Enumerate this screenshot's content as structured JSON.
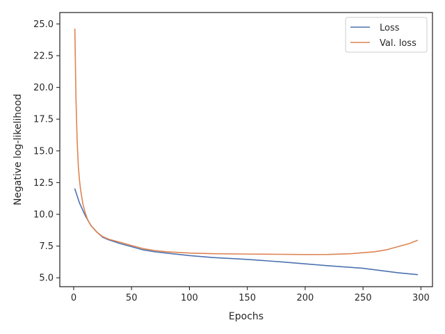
{
  "chart_data": {
    "type": "line",
    "title": "",
    "xlabel": "Epochs",
    "ylabel": "Negative log-likelihood",
    "xlim": [
      -12,
      310
    ],
    "ylim": [
      4.3,
      25.9
    ],
    "xticks": [
      0,
      50,
      100,
      150,
      200,
      250,
      300
    ],
    "xtick_labels": [
      "0",
      "50",
      "100",
      "150",
      "200",
      "250",
      "300"
    ],
    "yticks": [
      5.0,
      7.5,
      10.0,
      12.5,
      15.0,
      17.5,
      20.0,
      22.5,
      25.0
    ],
    "ytick_labels": [
      "5.0",
      "7.5",
      "10.0",
      "12.5",
      "15.0",
      "17.5",
      "20.0",
      "22.5",
      "25.0"
    ],
    "grid": false,
    "legend_position": "top-right",
    "series": [
      {
        "name": "Loss",
        "color": "#4c72b0",
        "x": [
          1,
          5,
          10,
          15,
          20,
          25,
          30,
          40,
          50,
          60,
          70,
          80,
          100,
          120,
          150,
          180,
          200,
          220,
          250,
          280,
          297
        ],
        "y": [
          12.0,
          10.9,
          9.9,
          9.1,
          8.6,
          8.2,
          8.0,
          7.7,
          7.45,
          7.2,
          7.05,
          6.95,
          6.75,
          6.6,
          6.45,
          6.25,
          6.1,
          5.95,
          5.75,
          5.4,
          5.25
        ]
      },
      {
        "name": "Val. loss",
        "color": "#dd8452",
        "x": [
          1,
          2,
          3,
          4,
          5,
          6,
          8,
          10,
          12,
          15,
          20,
          25,
          30,
          40,
          50,
          60,
          70,
          80,
          100,
          120,
          150,
          180,
          200,
          220,
          240,
          260,
          270,
          280,
          290,
          297
        ],
        "y": [
          24.6,
          19.0,
          15.8,
          13.8,
          12.7,
          11.9,
          10.8,
          10.1,
          9.6,
          9.1,
          8.6,
          8.25,
          8.05,
          7.8,
          7.55,
          7.3,
          7.15,
          7.05,
          6.95,
          6.9,
          6.87,
          6.85,
          6.83,
          6.84,
          6.9,
          7.05,
          7.2,
          7.45,
          7.7,
          7.95
        ]
      }
    ]
  }
}
